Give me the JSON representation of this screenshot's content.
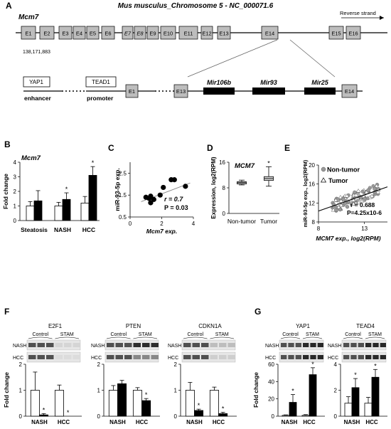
{
  "panelA": {
    "label": "A",
    "title": "Mus musculus_Chromosome 5 - NC_000071.6",
    "gene": "Mcm7",
    "strand": "Reverse strand",
    "coord": "138,171,883",
    "exons": [
      "E1",
      "E2",
      "E3",
      "E4",
      "E5",
      "E6",
      "E7",
      "E8",
      "E9",
      "E10",
      "E11",
      "E12",
      "E13",
      "E14",
      "E15",
      "E16"
    ],
    "zoom_exons": [
      "E1",
      "E13",
      "E14"
    ],
    "mirs": [
      "Mir106b",
      "Mir93",
      "Mir25"
    ],
    "enhancer_box": "YAP1",
    "enhancer_label": "enhancer",
    "promoter_box": "TEAD1",
    "promoter_label": "promoter"
  },
  "panelB": {
    "label": "B",
    "gene": "Mcm7",
    "ylabel": "Fold change",
    "chart_data": {
      "type": "bar",
      "categories": [
        "Steatosis",
        "NASH",
        "HCC"
      ],
      "series": [
        {
          "values": [
            1.0,
            1.0,
            1.2
          ],
          "errors": [
            0.3,
            0.25,
            0.45
          ],
          "fill": "#ffffff"
        },
        {
          "values": [
            1.35,
            1.45,
            3.1
          ],
          "errors": [
            0.7,
            0.45,
            0.6
          ],
          "fill": "#000000"
        }
      ],
      "significant": [
        false,
        true,
        true
      ],
      "yticks": [
        "0",
        "1",
        "2",
        "3",
        "4"
      ],
      "ylim": [
        0,
        4
      ]
    }
  },
  "panelC": {
    "label": "C",
    "ylabel": "miR-93-5p exp.",
    "xlabel": "Mcm7 exp.",
    "r": "r = 0.7",
    "p": "P = 0.03",
    "chart_data": {
      "type": "scatter",
      "points": [
        [
          1.0,
          1.4
        ],
        [
          1.2,
          1.35
        ],
        [
          1.3,
          1.45
        ],
        [
          1.5,
          1.3
        ],
        [
          1.3,
          1.15
        ],
        [
          1.9,
          1.5
        ],
        [
          2.1,
          1.85
        ],
        [
          2.6,
          2.2
        ],
        [
          2.8,
          2.2
        ],
        [
          3.5,
          1.9
        ]
      ],
      "xticks": [
        "0",
        "2",
        "4"
      ],
      "yticks": [
        "0.5",
        "1.5",
        "2.5"
      ],
      "xlim": [
        0,
        4
      ],
      "ylim": [
        0.5,
        3
      ]
    }
  },
  "panelD": {
    "label": "D",
    "gene": "MCM7",
    "ylabel": "Expression, log2(RPM)",
    "chart_data": {
      "type": "box",
      "categories": [
        "Non-tumor",
        "Tumor"
      ],
      "boxes": [
        {
          "min": 8.9,
          "q1": 9.2,
          "median": 9.6,
          "q3": 9.9,
          "max": 10.4
        },
        {
          "min": 8.5,
          "q1": 10.3,
          "median": 10.9,
          "q3": 11.5,
          "max": 14.6
        }
      ],
      "significant": [
        false,
        true
      ],
      "yticks": [
        "0",
        "8",
        "16"
      ],
      "ylim": [
        0,
        16
      ]
    }
  },
  "panelE": {
    "label": "E",
    "ylabel": "miR-93-5p exp., log2(RPM)",
    "xlabel": "MCM7 exp., log2(RPM)",
    "legend": [
      "Non-tumor",
      "Tumor"
    ],
    "r": "r = 0.688",
    "p": "P=4.25x10-6",
    "chart_data": {
      "type": "scatter",
      "xticks": [
        "8",
        "13"
      ],
      "yticks": [
        "8",
        "12",
        "16",
        "20"
      ],
      "xlim": [
        8,
        15.5
      ],
      "ylim": [
        8,
        20
      ],
      "trend": [
        [
          8,
          10.3
        ],
        [
          15.5,
          15.4
        ]
      ]
    }
  },
  "panelF": {
    "label": "F",
    "ylabel": "Fold change",
    "subplots": [
      {
        "protein": "E2F1",
        "values": [
          1.0,
          0.05,
          1.0,
          0.0
        ],
        "errors": [
          0.7,
          0.05,
          0.2,
          0.0
        ],
        "sig": [
          false,
          true,
          false,
          true
        ],
        "ymax": "2"
      },
      {
        "protein": "PTEN",
        "values": [
          1.0,
          1.25,
          1.0,
          0.6
        ],
        "errors": [
          0.18,
          0.13,
          0.1,
          0.08
        ],
        "sig": [
          false,
          false,
          false,
          true
        ],
        "ymax": "2"
      },
      {
        "protein": "CDKN1A",
        "values": [
          1.0,
          0.22,
          1.0,
          0.1
        ],
        "errors": [
          0.3,
          0.05,
          0.12,
          0.05
        ],
        "sig": [
          false,
          true,
          false,
          true
        ],
        "ymax": "2"
      }
    ],
    "control": "Control",
    "stam": "STAM",
    "rows": [
      "NASH",
      "HCC"
    ],
    "groups": [
      "NASH",
      "HCC"
    ],
    "yticks": [
      "0",
      "1",
      "2"
    ]
  },
  "panelG": {
    "label": "G",
    "ylabel": "Fold change",
    "subplots": [
      {
        "protein": "YAP1",
        "values": [
          1.0,
          16,
          1.0,
          48
        ],
        "errors": [
          0.5,
          9,
          0.8,
          8
        ],
        "sig": [
          false,
          true,
          false,
          true
        ],
        "yticks": [
          "0",
          "20",
          "40",
          "60"
        ],
        "ymax": 60
      },
      {
        "protein": "TEAD4",
        "values": [
          1.0,
          2.2,
          1.0,
          3.0
        ],
        "errors": [
          0.5,
          0.7,
          0.45,
          0.6
        ],
        "sig": [
          false,
          true,
          false,
          true
        ],
        "yticks": [
          "0",
          "2",
          "4"
        ],
        "ymax": 4
      }
    ],
    "control": "Control",
    "stam": "STAM",
    "rows": [
      "NASH",
      "HCC"
    ],
    "groups": [
      "NASH",
      "HCC"
    ]
  }
}
